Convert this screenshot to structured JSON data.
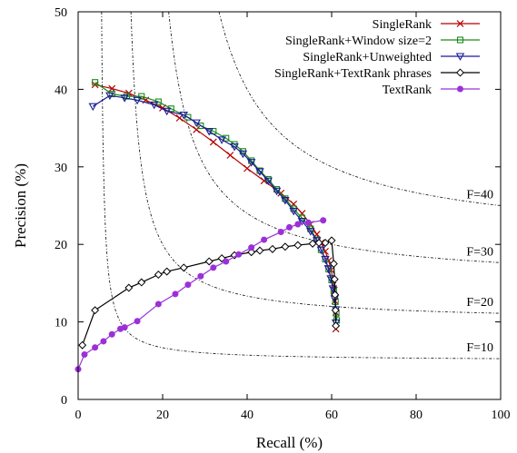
{
  "chart_data": {
    "type": "line",
    "xlabel": "Recall (%)",
    "ylabel": "Precision (%)",
    "xlim": [
      0,
      100
    ],
    "ylim": [
      0,
      50
    ],
    "xticks": [
      0,
      20,
      40,
      60,
      80,
      100
    ],
    "yticks": [
      0,
      10,
      20,
      30,
      40,
      50
    ],
    "legend_position": "top-right",
    "series": [
      {
        "name": "SingleRank",
        "color": "#b40000",
        "marker": "x",
        "points": [
          [
            4,
            40.6
          ],
          [
            8,
            40.1
          ],
          [
            12,
            39.5
          ],
          [
            16,
            38.6
          ],
          [
            20,
            37.6
          ],
          [
            24,
            36.3
          ],
          [
            28,
            34.8
          ],
          [
            32,
            33.2
          ],
          [
            36,
            31.5
          ],
          [
            40,
            29.8
          ],
          [
            44,
            28.2
          ],
          [
            48,
            26.6
          ],
          [
            51,
            25.2
          ],
          [
            53,
            24
          ],
          [
            55,
            22.6
          ],
          [
            56.5,
            21.3
          ],
          [
            57.5,
            20.2
          ],
          [
            58.5,
            19.1
          ],
          [
            59.3,
            17.9
          ],
          [
            59.9,
            16.7
          ],
          [
            60.3,
            15.4
          ],
          [
            60.6,
            14.1
          ],
          [
            60.8,
            12.7
          ],
          [
            61,
            11.2
          ],
          [
            61,
            9.1
          ]
        ]
      },
      {
        "name": "SingleRank+Window size=2",
        "color": "#1a8a1a",
        "marker": "square",
        "points": [
          [
            4,
            40.9
          ],
          [
            8,
            39.4
          ],
          [
            11.5,
            39.1
          ],
          [
            15,
            39.1
          ],
          [
            19,
            38.4
          ],
          [
            22,
            37.5
          ],
          [
            26,
            36.4
          ],
          [
            29,
            35.3
          ],
          [
            32,
            34.6
          ],
          [
            35,
            33.7
          ],
          [
            37,
            32.9
          ],
          [
            39,
            32
          ],
          [
            41,
            30.8
          ],
          [
            43,
            29.5
          ],
          [
            45,
            28.4
          ],
          [
            47,
            27.1
          ],
          [
            49,
            25.9
          ],
          [
            51,
            24.6
          ],
          [
            53,
            23.4
          ],
          [
            55,
            22
          ],
          [
            56.5,
            20.6
          ],
          [
            57.5,
            19.3
          ],
          [
            58.5,
            18.1
          ],
          [
            59.3,
            16.8
          ],
          [
            60,
            15.4
          ],
          [
            60.5,
            14
          ],
          [
            60.9,
            12.6
          ],
          [
            61.1,
            11.1
          ],
          [
            61.2,
            10.2
          ]
        ]
      },
      {
        "name": "SingleRank+Unweighted",
        "color": "#1a1a9a",
        "marker": "triangle-down",
        "points": [
          [
            3.5,
            37.8
          ],
          [
            7.5,
            39.2
          ],
          [
            11,
            38.9
          ],
          [
            14,
            38.6
          ],
          [
            18,
            38
          ],
          [
            21,
            37.2
          ],
          [
            25,
            36.7
          ],
          [
            28,
            35.7
          ],
          [
            31,
            34.6
          ],
          [
            34,
            33.5
          ],
          [
            37,
            32.6
          ],
          [
            39,
            31.7
          ],
          [
            41,
            30.6
          ],
          [
            43,
            29.4
          ],
          [
            45,
            28.2
          ],
          [
            47,
            26.9
          ],
          [
            49,
            25.7
          ],
          [
            51,
            24.3
          ],
          [
            53,
            23
          ],
          [
            55,
            21.7
          ],
          [
            56.5,
            20.5
          ],
          [
            57.5,
            19.3
          ],
          [
            58.5,
            18.1
          ],
          [
            59.2,
            16.9
          ],
          [
            59.8,
            15.6
          ],
          [
            60.3,
            14.3
          ],
          [
            60.7,
            13
          ],
          [
            61,
            11.6
          ],
          [
            61,
            9.9
          ]
        ]
      },
      {
        "name": "SingleRank+TextRank phrases",
        "color": "#000000",
        "marker": "diamond",
        "points": [
          [
            1,
            7
          ],
          [
            4,
            11.5
          ],
          [
            12,
            14.4
          ],
          [
            15,
            15.1
          ],
          [
            19,
            16.1
          ],
          [
            21,
            16.5
          ],
          [
            25,
            17
          ],
          [
            31,
            17.8
          ],
          [
            34,
            18.2
          ],
          [
            37,
            18.6
          ],
          [
            41,
            19
          ],
          [
            43,
            19.2
          ],
          [
            46,
            19.4
          ],
          [
            49,
            19.7
          ],
          [
            52,
            19.9
          ],
          [
            55.5,
            20.1
          ],
          [
            57,
            20.2
          ],
          [
            58.5,
            20.2
          ],
          [
            60,
            20.5
          ],
          [
            60.5,
            17.5
          ],
          [
            60.7,
            15.5
          ],
          [
            60.8,
            13.5
          ],
          [
            60.9,
            11.5
          ],
          [
            61,
            9.5
          ]
        ]
      },
      {
        "name": "TextRank",
        "color": "#9b30d8",
        "marker": "circle",
        "points": [
          [
            0,
            3.9
          ],
          [
            1.5,
            5.8
          ],
          [
            4,
            6.7
          ],
          [
            6,
            7.5
          ],
          [
            8,
            8.4
          ],
          [
            10,
            9.1
          ],
          [
            11,
            9.3
          ],
          [
            14,
            10.1
          ],
          [
            19,
            12.3
          ],
          [
            23,
            13.6
          ],
          [
            26,
            14.8
          ],
          [
            29,
            15.9
          ],
          [
            32,
            17
          ],
          [
            35,
            17.8
          ],
          [
            38,
            18.7
          ],
          [
            41,
            19.6
          ],
          [
            44,
            20.6
          ],
          [
            48,
            21.6
          ],
          [
            50,
            22.2
          ],
          [
            52,
            22.6
          ],
          [
            54.5,
            22.8
          ],
          [
            58,
            23.1
          ]
        ]
      }
    ],
    "iso_f_curves": [
      {
        "label": "F=10",
        "f": 10
      },
      {
        "label": "F=20",
        "f": 20
      },
      {
        "label": "F=30",
        "f": 30
      },
      {
        "label": "F=40",
        "f": 40
      }
    ]
  }
}
